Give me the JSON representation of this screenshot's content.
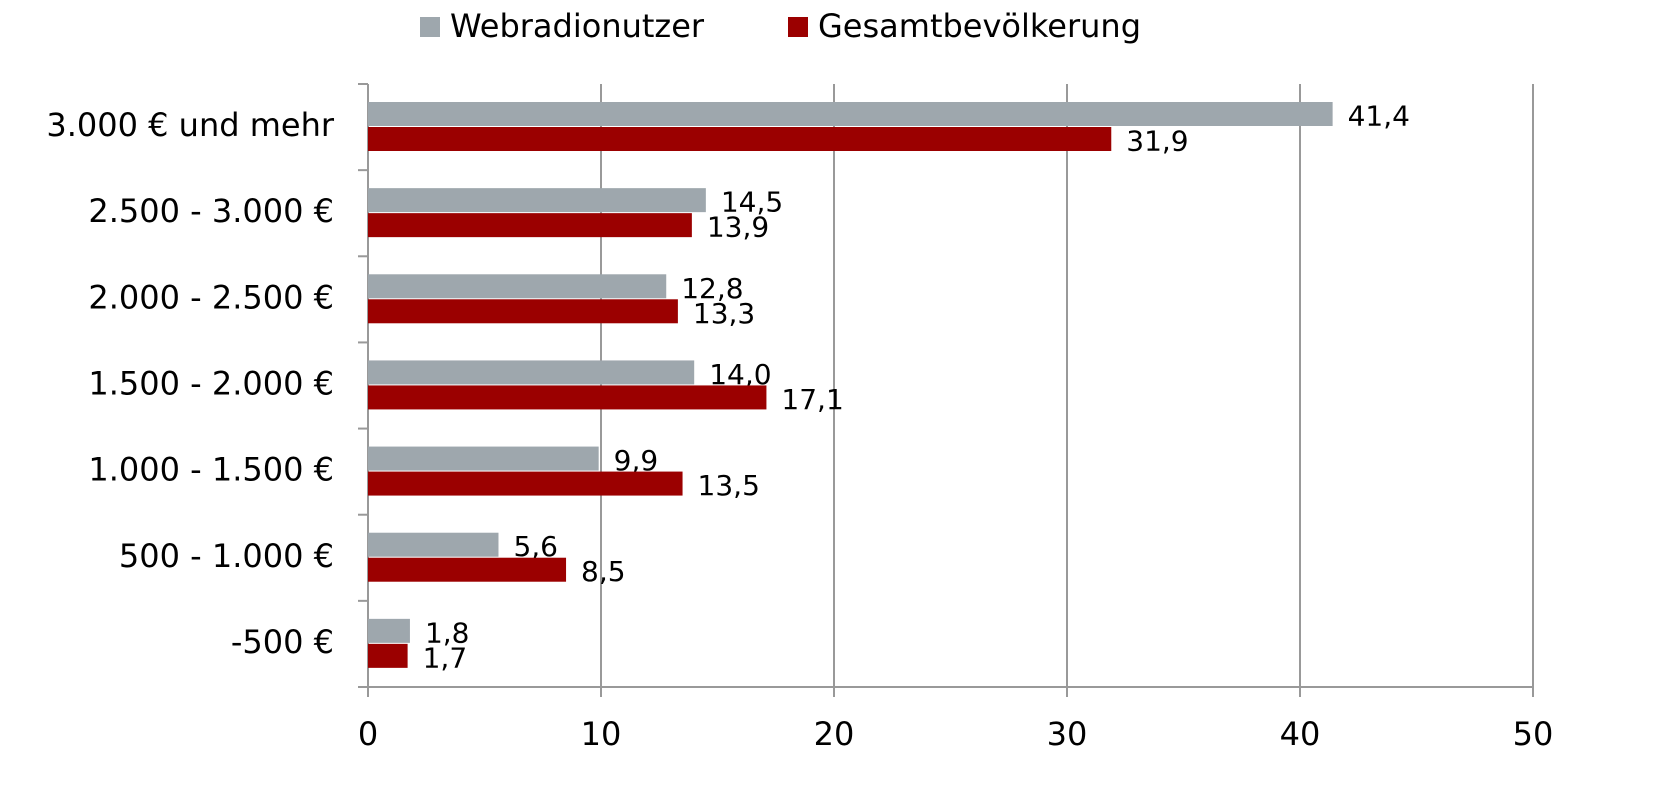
{
  "chart_data": {
    "type": "hbar",
    "categories": [
      "3.000 € und mehr",
      "2.500 - 3.000 €",
      "2.000 - 2.500 €",
      "1.500 - 2.000 €",
      "1.000 - 1.500 €",
      "500 - 1.000 €",
      "-500 €"
    ],
    "series": [
      {
        "name": "Webradionutzer",
        "color": "#9ea7ad",
        "values": [
          41.4,
          14.5,
          12.8,
          14.0,
          9.9,
          5.6,
          1.8
        ],
        "value_labels": [
          "41,4",
          "14,5",
          "12,8",
          "14,0",
          "9,9",
          "5,6",
          "1,8"
        ]
      },
      {
        "name": "Gesamtbevölkerung",
        "color": "#9b0000",
        "values": [
          31.9,
          13.9,
          13.3,
          17.1,
          13.5,
          8.5,
          1.7
        ],
        "value_labels": [
          "31,9",
          "13,9",
          "13,3",
          "17,1",
          "13,5",
          "8,5",
          "1,7"
        ]
      }
    ],
    "xlim": [
      0,
      50
    ],
    "xticks": [
      0,
      10,
      20,
      30,
      40,
      50
    ],
    "grid": true,
    "legend": "top"
  }
}
